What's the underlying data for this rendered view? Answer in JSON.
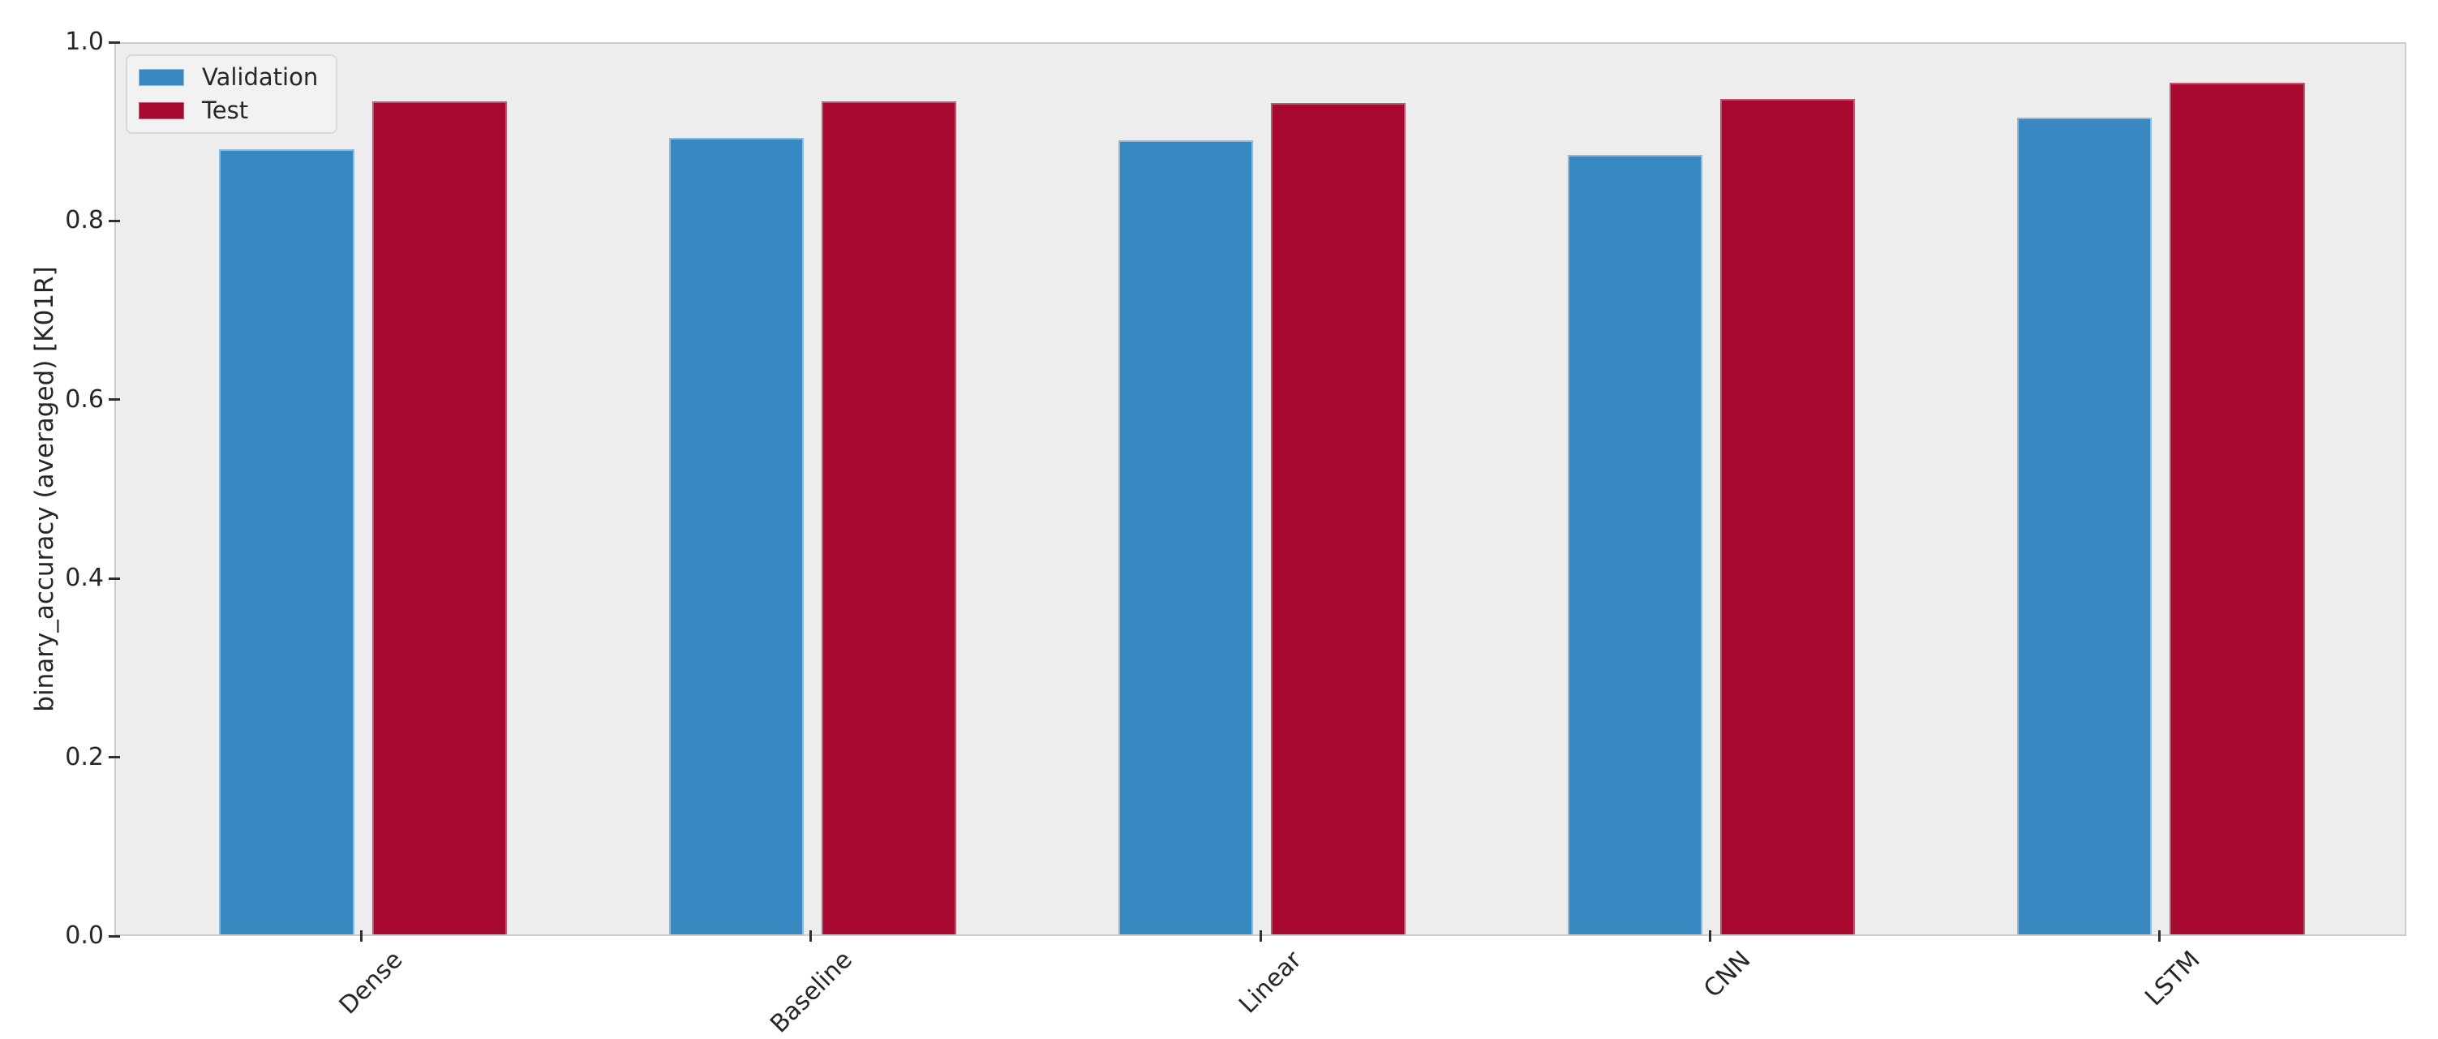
{
  "chart_data": {
    "type": "bar",
    "title": "",
    "xlabel": "",
    "ylabel": "binary_accuracy (averaged) [K01R]",
    "categories": [
      "Dense",
      "Baseline",
      "Linear",
      "CNN",
      "LSTM"
    ],
    "series": [
      {
        "name": "Validation",
        "color": "#3787c1",
        "edge_color": "#8fb8da",
        "values": [
          0.878,
          0.891,
          0.888,
          0.872,
          0.914
        ]
      },
      {
        "name": "Test",
        "color": "#a6082f",
        "edge_color": "#bf5570",
        "values": [
          0.932,
          0.932,
          0.93,
          0.935,
          0.953
        ]
      }
    ],
    "ylim": [
      0.0,
      1.0
    ],
    "yticks": [
      "0.0",
      "0.2",
      "0.4",
      "0.6",
      "0.8",
      "1.0"
    ],
    "grid": false,
    "legend_position": "upper-left",
    "plot_background": "#ededed",
    "figure_background": "#ffffff",
    "spine_color": "#cccccc",
    "tick_color": "#2f2f2f",
    "text_color": "#262626"
  }
}
